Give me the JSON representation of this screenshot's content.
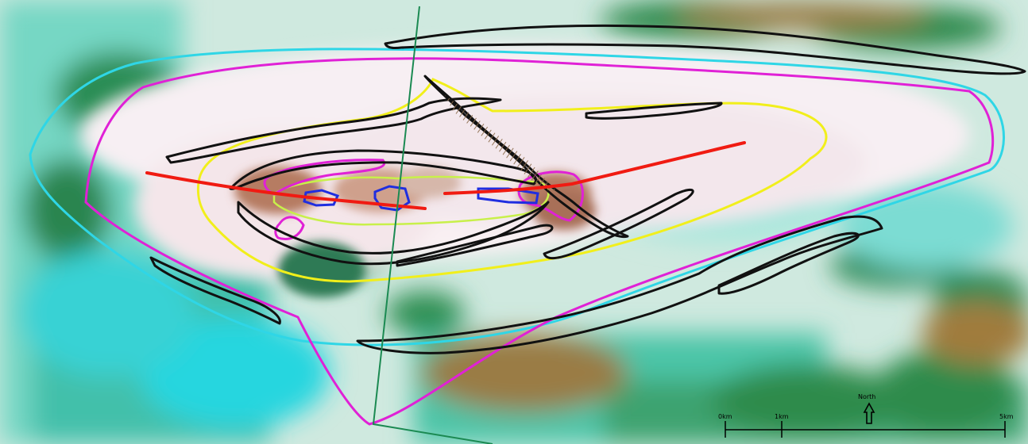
{
  "map": {
    "basemap": "satellite imagery",
    "colors": {
      "black_outline": "#111111",
      "cyan_outline": "#2fd6e6",
      "magenta_outline": "#e021d6",
      "yellow_outline": "#f1ef1b",
      "lime_outline": "#c8f04a",
      "blue_outline": "#1f2ee0",
      "red_line": "#f01b12",
      "green_line": "#1b8a52"
    },
    "scale_bar": {
      "labels": [
        "0km",
        "1km",
        "5km"
      ]
    },
    "north_arrow": {
      "label": "North",
      "icon": "north-arrow-icon"
    }
  }
}
